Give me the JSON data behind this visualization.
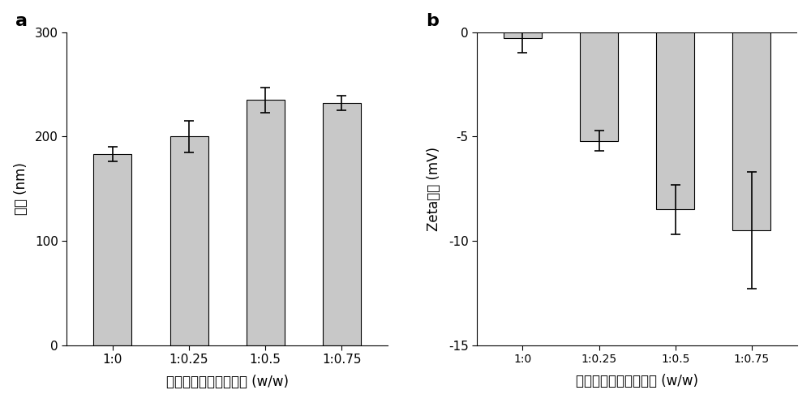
{
  "panel_a": {
    "categories": [
      "1:0",
      "1:0.25",
      "1:0.5",
      "1:0.75"
    ],
    "values": [
      183,
      200,
      235,
      232
    ],
    "errors": [
      7,
      15,
      12,
      7
    ],
    "ylabel": "粒径 (nm)",
    "xlabel": "磷脂和膜蛋白的质量比 (w/w)",
    "ylim": [
      0,
      300
    ],
    "yticks": [
      0,
      100,
      200,
      300
    ],
    "label": "a"
  },
  "panel_b": {
    "categories": [
      "1:0",
      "1:0.25",
      "1:0.5",
      "1:0.75"
    ],
    "values": [
      -0.3,
      -5.2,
      -8.5,
      -9.5
    ],
    "errors": [
      0.7,
      0.5,
      1.2,
      2.8
    ],
    "ylabel": "Zeta电位 (mV)",
    "xlabel": "磷脂和膜蛋白的质量比 (w/w)",
    "ylim": [
      -15,
      0
    ],
    "yticks": [
      -15,
      -10,
      -5,
      0
    ],
    "label": "b"
  },
  "bar_color": "#c8c8c8",
  "bar_edgecolor": "#000000",
  "bar_width": 0.5,
  "capsize": 4,
  "error_linewidth": 1.2,
  "background_color": "#ffffff",
  "tick_fontsize": 11,
  "axis_label_fontsize": 12,
  "panel_label_fontsize": 16
}
